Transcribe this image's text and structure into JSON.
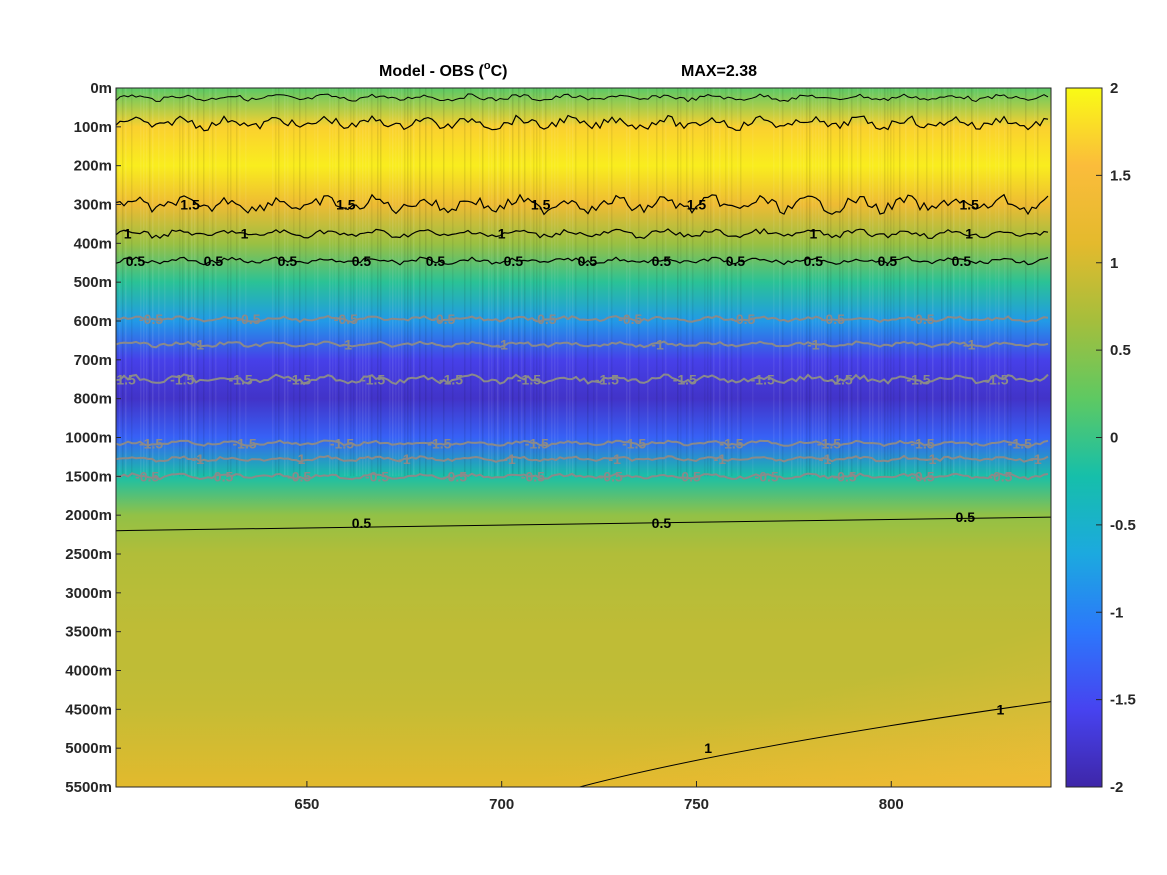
{
  "chart_data": {
    "type": "heatmap",
    "title": "Model - OBS (",
    "title_unit_sup": "o",
    "title_unit": "C)",
    "max_label": "MAX=2.38",
    "x_ticks": [
      650,
      700,
      750,
      800
    ],
    "xlim": [
      601,
      841
    ],
    "y_tick_labels": [
      "0m",
      "100m",
      "200m",
      "300m",
      "400m",
      "500m",
      "600m",
      "700m",
      "800m",
      "1000m",
      "1500m",
      "2000m",
      "2500m",
      "3000m",
      "3500m",
      "4000m",
      "4500m",
      "5000m",
      "5500m"
    ],
    "colorbar": {
      "ticks": [
        "2",
        "1.5",
        "1",
        "0.5",
        "0",
        "-0.5",
        "-1",
        "-1.5",
        "-2"
      ],
      "clim": [
        -2,
        2
      ],
      "colormap": [
        "#3e26a8",
        "#4743f0",
        "#2c77fb",
        "#1ca9df",
        "#16bfaa",
        "#5ec962",
        "#a5be3c",
        "#e4ba2d",
        "#fbbc3b",
        "#f9fb15"
      ]
    },
    "depth_profile": [
      {
        "depth": "0m",
        "value": 0.2
      },
      {
        "depth": "100m",
        "value": 1.7
      },
      {
        "depth": "200m",
        "value": 1.9
      },
      {
        "depth": "300m",
        "value": 1.3
      },
      {
        "depth": "400m",
        "value": 0.6
      },
      {
        "depth": "500m",
        "value": -0.1
      },
      {
        "depth": "600m",
        "value": -0.8
      },
      {
        "depth": "700m",
        "value": -1.6
      },
      {
        "depth": "800m",
        "value": -1.8
      },
      {
        "depth": "1000m",
        "value": -1.3
      },
      {
        "depth": "1500m",
        "value": -0.2
      },
      {
        "depth": "2000m",
        "value": 0.55
      },
      {
        "depth": "2500m",
        "value": 0.75
      },
      {
        "depth": "3000m",
        "value": 0.8
      },
      {
        "depth": "3500m",
        "value": 0.85
      },
      {
        "depth": "4000m",
        "value": 0.85
      },
      {
        "depth": "4500m",
        "value": 0.9
      },
      {
        "depth": "5000m",
        "value": 1.0
      },
      {
        "depth": "5500m",
        "value": 1.1
      }
    ],
    "contour_labels": [
      {
        "text": "1.5",
        "depth_index": 3.0,
        "x": 620,
        "color": "black"
      },
      {
        "text": "1.5",
        "depth_index": 3.0,
        "x": 660,
        "color": "black"
      },
      {
        "text": "1.5",
        "depth_index": 3.0,
        "x": 710,
        "color": "black"
      },
      {
        "text": "1.5",
        "depth_index": 3.0,
        "x": 750,
        "color": "black"
      },
      {
        "text": "1.5",
        "depth_index": 3.0,
        "x": 820,
        "color": "black"
      },
      {
        "text": "1",
        "depth_index": 3.75,
        "x": 604,
        "color": "black"
      },
      {
        "text": "1",
        "depth_index": 3.75,
        "x": 634,
        "color": "black"
      },
      {
        "text": "1",
        "depth_index": 3.75,
        "x": 700,
        "color": "black"
      },
      {
        "text": "1",
        "depth_index": 3.75,
        "x": 780,
        "color": "black"
      },
      {
        "text": "1",
        "depth_index": 3.75,
        "x": 820,
        "color": "black"
      },
      {
        "text": "0.5",
        "depth_index": 4.45,
        "x": 606,
        "color": "black"
      },
      {
        "text": "0.5",
        "depth_index": 4.45,
        "x": 626,
        "color": "black"
      },
      {
        "text": "0.5",
        "depth_index": 4.45,
        "x": 645,
        "color": "black"
      },
      {
        "text": "0.5",
        "depth_index": 4.45,
        "x": 664,
        "color": "black"
      },
      {
        "text": "0.5",
        "depth_index": 4.45,
        "x": 683,
        "color": "black"
      },
      {
        "text": "0.5",
        "depth_index": 4.45,
        "x": 703,
        "color": "black"
      },
      {
        "text": "0.5",
        "depth_index": 4.45,
        "x": 722,
        "color": "black"
      },
      {
        "text": "0.5",
        "depth_index": 4.45,
        "x": 741,
        "color": "black"
      },
      {
        "text": "0.5",
        "depth_index": 4.45,
        "x": 760,
        "color": "black"
      },
      {
        "text": "0.5",
        "depth_index": 4.45,
        "x": 780,
        "color": "black"
      },
      {
        "text": "0.5",
        "depth_index": 4.45,
        "x": 799,
        "color": "black"
      },
      {
        "text": "0.5",
        "depth_index": 4.45,
        "x": 818,
        "color": "black"
      },
      {
        "text": "-0.5",
        "depth_index": 5.95,
        "x": 610,
        "color": "gray"
      },
      {
        "text": "-0.5",
        "depth_index": 5.95,
        "x": 635,
        "color": "gray"
      },
      {
        "text": "-0.5",
        "depth_index": 5.95,
        "x": 660,
        "color": "gray"
      },
      {
        "text": "-0.5",
        "depth_index": 5.95,
        "x": 685,
        "color": "gray"
      },
      {
        "text": "-0.5",
        "depth_index": 5.95,
        "x": 711,
        "color": "gray"
      },
      {
        "text": "-0.5",
        "depth_index": 5.95,
        "x": 733,
        "color": "gray"
      },
      {
        "text": "-0.5",
        "depth_index": 5.95,
        "x": 762,
        "color": "gray"
      },
      {
        "text": "-0.5",
        "depth_index": 5.95,
        "x": 785,
        "color": "gray"
      },
      {
        "text": "-0.5",
        "depth_index": 5.95,
        "x": 808,
        "color": "gray"
      },
      {
        "text": "-1",
        "depth_index": 6.6,
        "x": 622,
        "color": "gray"
      },
      {
        "text": "-1",
        "depth_index": 6.6,
        "x": 660,
        "color": "gray"
      },
      {
        "text": "-1",
        "depth_index": 6.6,
        "x": 700,
        "color": "gray"
      },
      {
        "text": "-1",
        "depth_index": 6.6,
        "x": 740,
        "color": "gray"
      },
      {
        "text": "-1",
        "depth_index": 6.6,
        "x": 780,
        "color": "gray"
      },
      {
        "text": "-1",
        "depth_index": 6.6,
        "x": 820,
        "color": "gray"
      },
      {
        "text": "-1.5",
        "depth_index": 7.5,
        "x": 603,
        "color": "gray"
      },
      {
        "text": "-1.5",
        "depth_index": 7.5,
        "x": 618,
        "color": "gray"
      },
      {
        "text": "-1.5",
        "depth_index": 7.5,
        "x": 633,
        "color": "gray"
      },
      {
        "text": "-1.5",
        "depth_index": 7.5,
        "x": 648,
        "color": "gray"
      },
      {
        "text": "-1.5",
        "depth_index": 7.5,
        "x": 667,
        "color": "gray"
      },
      {
        "text": "-1.5",
        "depth_index": 7.5,
        "x": 687,
        "color": "gray"
      },
      {
        "text": "-1.5",
        "depth_index": 7.5,
        "x": 707,
        "color": "gray"
      },
      {
        "text": "-1.5",
        "depth_index": 7.5,
        "x": 727,
        "color": "gray"
      },
      {
        "text": "-1.5",
        "depth_index": 7.5,
        "x": 747,
        "color": "gray"
      },
      {
        "text": "-1.5",
        "depth_index": 7.5,
        "x": 767,
        "color": "gray"
      },
      {
        "text": "-1.5",
        "depth_index": 7.5,
        "x": 787,
        "color": "gray"
      },
      {
        "text": "-1.5",
        "depth_index": 7.5,
        "x": 807,
        "color": "gray"
      },
      {
        "text": "-1.5",
        "depth_index": 7.5,
        "x": 827,
        "color": "gray"
      },
      {
        "text": "-1.5",
        "depth_index": 9.15,
        "x": 610,
        "color": "gray"
      },
      {
        "text": "-1.5",
        "depth_index": 9.15,
        "x": 634,
        "color": "gray"
      },
      {
        "text": "-1.5",
        "depth_index": 9.15,
        "x": 659,
        "color": "gray"
      },
      {
        "text": "-1.5",
        "depth_index": 9.15,
        "x": 684,
        "color": "gray"
      },
      {
        "text": "-1.5",
        "depth_index": 9.15,
        "x": 709,
        "color": "gray"
      },
      {
        "text": "-1.5",
        "depth_index": 9.15,
        "x": 734,
        "color": "gray"
      },
      {
        "text": "-1.5",
        "depth_index": 9.15,
        "x": 759,
        "color": "gray"
      },
      {
        "text": "-1.5",
        "depth_index": 9.15,
        "x": 784,
        "color": "gray"
      },
      {
        "text": "-1.5",
        "depth_index": 9.15,
        "x": 808,
        "color": "gray"
      },
      {
        "text": "-1.5",
        "depth_index": 9.15,
        "x": 833,
        "color": "gray"
      },
      {
        "text": "-1",
        "depth_index": 9.55,
        "x": 622,
        "color": "gray"
      },
      {
        "text": "-1",
        "depth_index": 9.55,
        "x": 648,
        "color": "gray"
      },
      {
        "text": "-1",
        "depth_index": 9.55,
        "x": 675,
        "color": "gray"
      },
      {
        "text": "-1",
        "depth_index": 9.55,
        "x": 702,
        "color": "gray"
      },
      {
        "text": "-1",
        "depth_index": 9.55,
        "x": 729,
        "color": "gray"
      },
      {
        "text": "-1",
        "depth_index": 9.55,
        "x": 756,
        "color": "gray"
      },
      {
        "text": "-1",
        "depth_index": 9.55,
        "x": 783,
        "color": "gray"
      },
      {
        "text": "-1",
        "depth_index": 9.55,
        "x": 810,
        "color": "gray"
      },
      {
        "text": "-1",
        "depth_index": 9.55,
        "x": 837,
        "color": "gray"
      },
      {
        "text": "-0.5",
        "depth_index": 10.0,
        "x": 609,
        "color": "gray"
      },
      {
        "text": "-0.5",
        "depth_index": 10.0,
        "x": 628,
        "color": "gray"
      },
      {
        "text": "-0.5",
        "depth_index": 10.0,
        "x": 648,
        "color": "gray"
      },
      {
        "text": "-0.5",
        "depth_index": 10.0,
        "x": 668,
        "color": "gray"
      },
      {
        "text": "-0.5",
        "depth_index": 10.0,
        "x": 688,
        "color": "gray"
      },
      {
        "text": "-0.5",
        "depth_index": 10.0,
        "x": 708,
        "color": "gray"
      },
      {
        "text": "-0.5",
        "depth_index": 10.0,
        "x": 728,
        "color": "gray"
      },
      {
        "text": "-0.5",
        "depth_index": 10.0,
        "x": 748,
        "color": "gray"
      },
      {
        "text": "-0.5",
        "depth_index": 10.0,
        "x": 768,
        "color": "gray"
      },
      {
        "text": "-0.5",
        "depth_index": 10.0,
        "x": 788,
        "color": "gray"
      },
      {
        "text": "-0.5",
        "depth_index": 10.0,
        "x": 808,
        "color": "gray"
      },
      {
        "text": "-0.5",
        "depth_index": 10.0,
        "x": 828,
        "color": "gray"
      },
      {
        "text": "0.5",
        "depth_index": 11.2,
        "x": 664,
        "color": "black"
      },
      {
        "text": "0.5",
        "depth_index": 11.2,
        "x": 741,
        "color": "black"
      },
      {
        "text": "0.5",
        "depth_index": 11.05,
        "x": 819,
        "color": "black"
      },
      {
        "text": "1",
        "depth_index": 17.0,
        "x": 753,
        "color": "black"
      },
      {
        "text": "1",
        "depth_index": 16.0,
        "x": 828,
        "color": "black"
      }
    ]
  }
}
